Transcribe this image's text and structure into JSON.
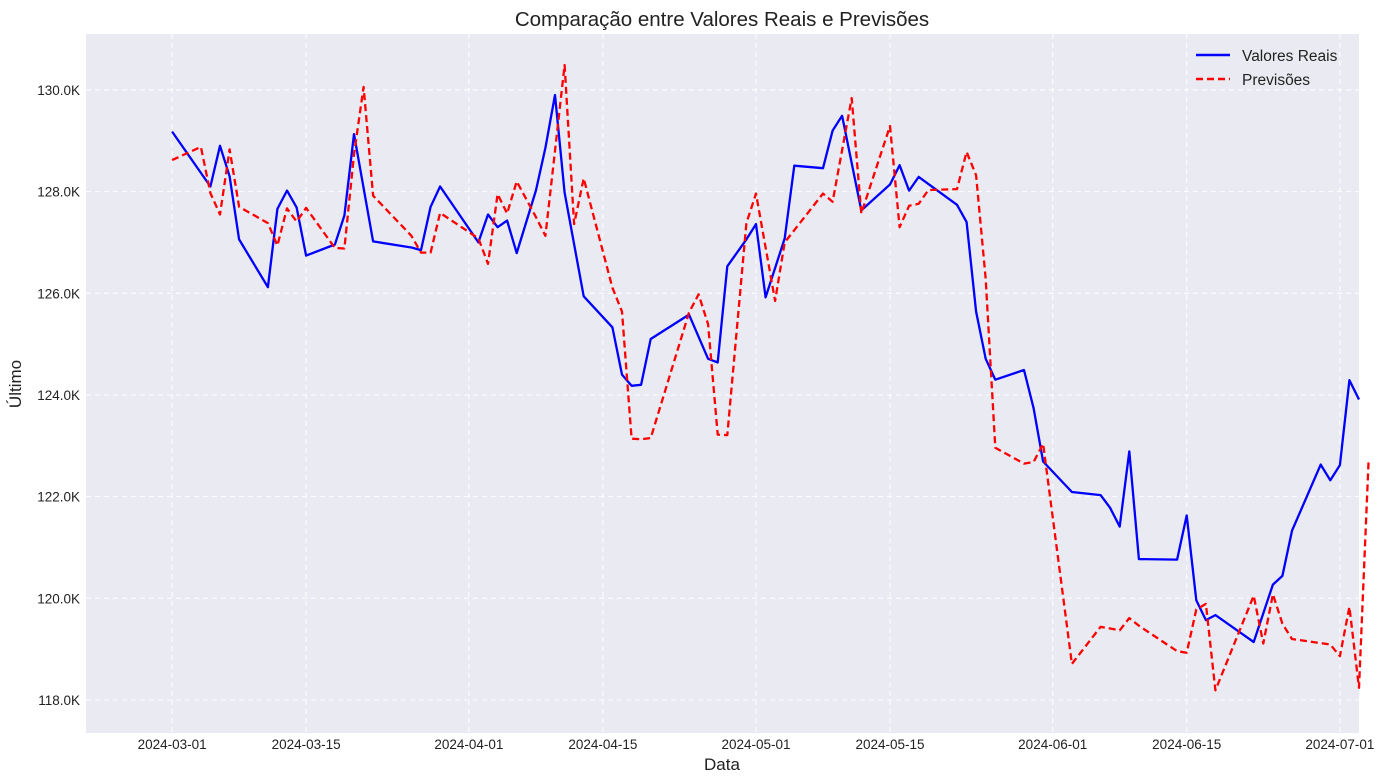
{
  "chart_data": {
    "type": "line",
    "title": "Comparação entre Valores Reais e Previsões",
    "xlabel": "Data",
    "ylabel": "Último",
    "x_tick_labels": [
      "2024-03-01",
      "2024-03-15",
      "2024-04-01",
      "2024-04-15",
      "2024-05-01",
      "2024-05-15",
      "2024-06-01",
      "2024-06-15",
      "2024-07-01"
    ],
    "y_tick_labels": [
      "118.0K",
      "120.0K",
      "122.0K",
      "124.0K",
      "126.0K",
      "128.0K",
      "130.0K"
    ],
    "y_ticks": [
      118000,
      120000,
      122000,
      124000,
      126000,
      128000,
      130000
    ],
    "xlim": [
      "2024-02-21",
      "2024-07-03"
    ],
    "ylim": [
      117350,
      131100
    ],
    "grid": true,
    "legend_position": "top-right",
    "colors": {
      "background": "#eaeaf2",
      "grid": "#ffffff",
      "reais": "#0000ff",
      "previsoes": "#ff0000"
    },
    "series": [
      {
        "name": "Valores Reais",
        "style": "solid",
        "color": "#0000ff",
        "points": [
          [
            "2024-03-01",
            129180
          ],
          [
            "2024-03-05",
            128100
          ],
          [
            "2024-03-06",
            128900
          ],
          [
            "2024-03-07",
            128300
          ],
          [
            "2024-03-08",
            127060
          ],
          [
            "2024-03-11",
            126120
          ],
          [
            "2024-03-12",
            127660
          ],
          [
            "2024-03-13",
            128020
          ],
          [
            "2024-03-14",
            127690
          ],
          [
            "2024-03-15",
            126740
          ],
          [
            "2024-03-18",
            126960
          ],
          [
            "2024-03-19",
            127530
          ],
          [
            "2024-03-20",
            129130
          ],
          [
            "2024-03-22",
            127020
          ],
          [
            "2024-03-26",
            126900
          ],
          [
            "2024-03-27",
            126850
          ],
          [
            "2024-03-28",
            127700
          ],
          [
            "2024-03-29",
            128100
          ],
          [
            "2024-04-02",
            127000
          ],
          [
            "2024-04-03",
            127550
          ],
          [
            "2024-04-04",
            127300
          ],
          [
            "2024-04-05",
            127430
          ],
          [
            "2024-04-06",
            126790
          ],
          [
            "2024-04-08",
            128020
          ],
          [
            "2024-04-09",
            128860
          ],
          [
            "2024-04-10",
            129900
          ],
          [
            "2024-04-11",
            127980
          ],
          [
            "2024-04-13",
            125940
          ],
          [
            "2024-04-16",
            125330
          ],
          [
            "2024-04-17",
            124400
          ],
          [
            "2024-04-18",
            124180
          ],
          [
            "2024-04-19",
            124200
          ],
          [
            "2024-04-20",
            125100
          ],
          [
            "2024-04-24",
            125580
          ],
          [
            "2024-04-26",
            124710
          ],
          [
            "2024-04-27",
            124640
          ],
          [
            "2024-04-28",
            126530
          ],
          [
            "2024-04-30",
            127060
          ],
          [
            "2024-05-01",
            127360
          ],
          [
            "2024-05-02",
            125920
          ],
          [
            "2024-05-04",
            127080
          ],
          [
            "2024-05-05",
            128510
          ],
          [
            "2024-05-08",
            128460
          ],
          [
            "2024-05-09",
            129200
          ],
          [
            "2024-05-10",
            129490
          ],
          [
            "2024-05-12",
            127630
          ],
          [
            "2024-05-15",
            128140
          ],
          [
            "2024-05-16",
            128520
          ],
          [
            "2024-05-17",
            128020
          ],
          [
            "2024-05-18",
            128290
          ],
          [
            "2024-05-22",
            127740
          ],
          [
            "2024-05-23",
            127400
          ],
          [
            "2024-05-24",
            125640
          ],
          [
            "2024-05-25",
            124710
          ],
          [
            "2024-05-26",
            124300
          ],
          [
            "2024-05-29",
            124490
          ],
          [
            "2024-05-30",
            123740
          ],
          [
            "2024-05-31",
            122690
          ],
          [
            "2024-06-03",
            122090
          ],
          [
            "2024-06-06",
            122030
          ],
          [
            "2024-06-07",
            121780
          ],
          [
            "2024-06-08",
            121410
          ],
          [
            "2024-06-09",
            122890
          ],
          [
            "2024-06-10",
            120770
          ],
          [
            "2024-06-14",
            120760
          ],
          [
            "2024-06-15",
            121630
          ],
          [
            "2024-06-16",
            119960
          ],
          [
            "2024-06-17",
            119570
          ],
          [
            "2024-06-18",
            119670
          ],
          [
            "2024-06-22",
            119140
          ],
          [
            "2024-06-24",
            120270
          ],
          [
            "2024-06-25",
            120440
          ],
          [
            "2024-06-26",
            121330
          ],
          [
            "2024-06-29",
            122630
          ],
          [
            "2024-06-30",
            122320
          ],
          [
            "2024-07-01",
            122620
          ],
          [
            "2024-07-02",
            124290
          ],
          [
            "2024-07-03",
            123910
          ]
        ]
      },
      {
        "name": "Previsões",
        "style": "dashed",
        "color": "#ff0000",
        "points": [
          [
            "2024-03-01",
            128620
          ],
          [
            "2024-03-04",
            128880
          ],
          [
            "2024-03-05",
            127970
          ],
          [
            "2024-03-06",
            127550
          ],
          [
            "2024-03-07",
            128830
          ],
          [
            "2024-03-08",
            127700
          ],
          [
            "2024-03-11",
            127380
          ],
          [
            "2024-03-12",
            126940
          ],
          [
            "2024-03-13",
            127670
          ],
          [
            "2024-03-14",
            127410
          ],
          [
            "2024-03-15",
            127680
          ],
          [
            "2024-03-18",
            126890
          ],
          [
            "2024-03-19",
            126880
          ],
          [
            "2024-03-20",
            128730
          ],
          [
            "2024-03-21",
            130060
          ],
          [
            "2024-03-22",
            127920
          ],
          [
            "2024-03-26",
            127130
          ],
          [
            "2024-03-27",
            126800
          ],
          [
            "2024-03-28",
            126800
          ],
          [
            "2024-03-29",
            127580
          ],
          [
            "2024-04-02",
            127080
          ],
          [
            "2024-04-03",
            126580
          ],
          [
            "2024-04-04",
            127950
          ],
          [
            "2024-04-05",
            127570
          ],
          [
            "2024-04-06",
            128200
          ],
          [
            "2024-04-08",
            127500
          ],
          [
            "2024-04-09",
            127130
          ],
          [
            "2024-04-10",
            128800
          ],
          [
            "2024-04-11",
            130490
          ],
          [
            "2024-04-12",
            127360
          ],
          [
            "2024-04-13",
            128260
          ],
          [
            "2024-04-16",
            126110
          ],
          [
            "2024-04-17",
            125640
          ],
          [
            "2024-04-18",
            123140
          ],
          [
            "2024-04-19",
            123130
          ],
          [
            "2024-04-20",
            123150
          ],
          [
            "2024-04-24",
            125620
          ],
          [
            "2024-04-25",
            125980
          ],
          [
            "2024-04-26",
            125390
          ],
          [
            "2024-04-27",
            123220
          ],
          [
            "2024-04-28",
            123210
          ],
          [
            "2024-04-30",
            127380
          ],
          [
            "2024-05-01",
            127960
          ],
          [
            "2024-05-03",
            125850
          ],
          [
            "2024-05-04",
            127000
          ],
          [
            "2024-05-08",
            127960
          ],
          [
            "2024-05-09",
            127800
          ],
          [
            "2024-05-11",
            129840
          ],
          [
            "2024-05-12",
            127570
          ],
          [
            "2024-05-15",
            129290
          ],
          [
            "2024-05-16",
            127300
          ],
          [
            "2024-05-17",
            127720
          ],
          [
            "2024-05-18",
            127760
          ],
          [
            "2024-05-19",
            128030
          ],
          [
            "2024-05-22",
            128050
          ],
          [
            "2024-05-23",
            128780
          ],
          [
            "2024-05-24",
            128320
          ],
          [
            "2024-05-25",
            126280
          ],
          [
            "2024-05-26",
            122960
          ],
          [
            "2024-05-29",
            122650
          ],
          [
            "2024-05-30",
            122680
          ],
          [
            "2024-05-31",
            123040
          ],
          [
            "2024-06-03",
            118710
          ],
          [
            "2024-06-06",
            119440
          ],
          [
            "2024-06-08",
            119370
          ],
          [
            "2024-06-09",
            119610
          ],
          [
            "2024-06-10",
            119460
          ],
          [
            "2024-06-14",
            118960
          ],
          [
            "2024-06-15",
            118930
          ],
          [
            "2024-06-16",
            119780
          ],
          [
            "2024-06-17",
            119890
          ],
          [
            "2024-06-18",
            118190
          ],
          [
            "2024-06-22",
            120050
          ],
          [
            "2024-06-23",
            119110
          ],
          [
            "2024-06-24",
            120080
          ],
          [
            "2024-06-25",
            119500
          ],
          [
            "2024-06-26",
            119200
          ],
          [
            "2024-06-30",
            119090
          ],
          [
            "2024-07-01",
            118860
          ],
          [
            "2024-07-02",
            119830
          ],
          [
            "2024-07-03",
            118240
          ],
          [
            "2024-07-04",
            122710
          ]
        ]
      }
    ]
  }
}
